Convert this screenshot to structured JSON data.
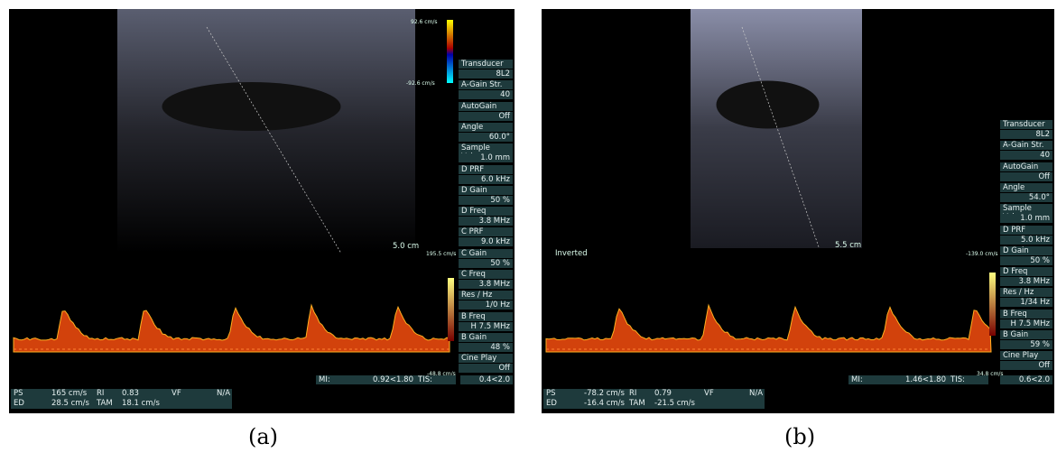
{
  "panels": [
    {
      "scale_top": "92.6 cm/s",
      "scale_bottom": "-92.6 cm/s",
      "depth": "5.0 cm",
      "doppler_top": "195.5 cm/s",
      "doppler_bottom": "-48.8 cm/s",
      "settings": [
        [
          "Transducer",
          "8L2"
        ],
        [
          "A-Gain Str.",
          "40"
        ],
        [
          "AutoGain",
          "Off"
        ],
        [
          "Angle",
          "60.0°"
        ],
        [
          "Sample Volume",
          "1.0 mm"
        ],
        [
          "D PRF",
          "6.0 kHz"
        ],
        [
          "D Gain",
          "50 %"
        ],
        [
          "D Freq",
          "3.8 MHz"
        ],
        [
          "C PRF",
          "9.0 kHz"
        ],
        [
          "C Gain",
          "50 %"
        ],
        [
          "C Freq",
          "3.8 MHz"
        ],
        [
          "Res / Hz",
          "1/0 Hz"
        ],
        [
          "B Freq",
          "H 7.5 MHz"
        ],
        [
          "B Gain",
          "48 %"
        ],
        [
          "Cine Play",
          "Off"
        ]
      ],
      "mi_label": "MI:",
      "mi": "0.92<1.80",
      "tis_label": "TIS:",
      "tis": "0.4<2.0",
      "measurements": [
        [
          "PS",
          "165 cm/s",
          "RI",
          "0.83",
          "VF",
          "N/A"
        ],
        [
          "ED",
          "28.5 cm/s",
          "TAM",
          "18.1 cm/s"
        ]
      ],
      "caption": "(a)"
    },
    {
      "scale_top": "-139.0 cm/s",
      "scale_bottom": "34.8 cm/s",
      "depth": "5.5 cm",
      "mode": "Inverted",
      "settings": [
        [
          "Transducer",
          "8L2"
        ],
        [
          "A-Gain Str.",
          "40"
        ],
        [
          "AutoGain",
          "Off"
        ],
        [
          "Angle",
          "54.0°"
        ],
        [
          "Sample Volume",
          "1.0 mm"
        ],
        [
          "D PRF",
          "5.0 kHz"
        ],
        [
          "D Gain",
          "50 %"
        ],
        [
          "D Freq",
          "3.8 MHz"
        ],
        [
          "Res / Hz",
          "1/34 Hz"
        ],
        [
          "B Freq",
          "H 7.5 MHz"
        ],
        [
          "B Gain",
          "59 %"
        ],
        [
          "Cine Play",
          "Off"
        ]
      ],
      "mi_label": "MI:",
      "mi": "1.46<1.80",
      "tis_label": "TIS:",
      "tis": "0.6<2.0",
      "measurements": [
        [
          "PS",
          "-78.2 cm/s",
          "RI",
          "0.79",
          "VF",
          "N/A"
        ],
        [
          "ED",
          "-16.4 cm/s",
          "TAM",
          "-21.5 cm/s"
        ]
      ],
      "caption": "(b)"
    }
  ]
}
